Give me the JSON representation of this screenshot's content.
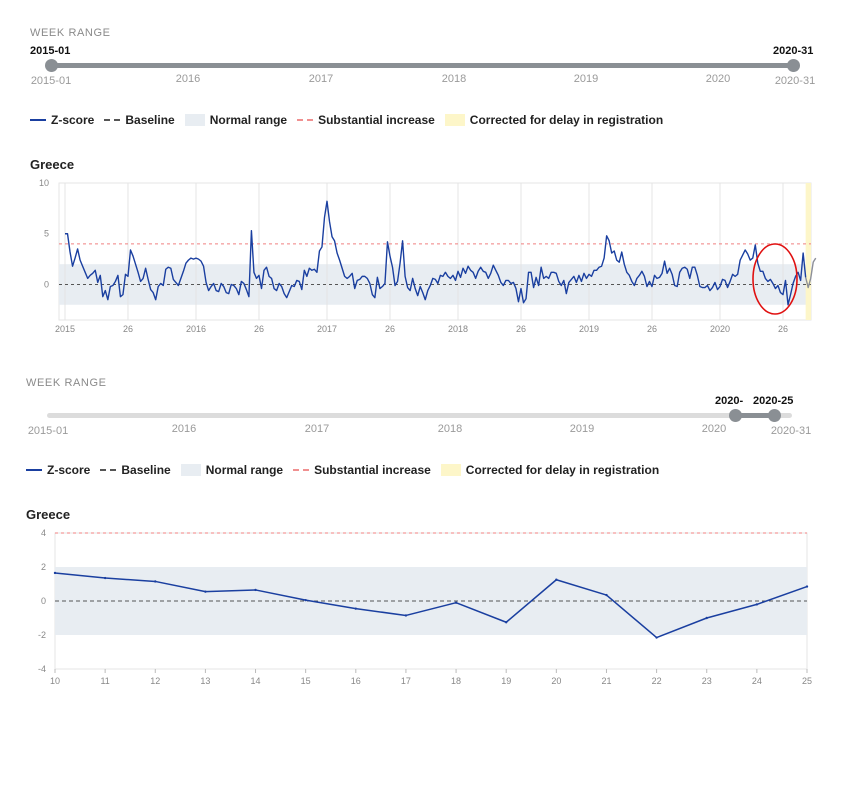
{
  "top": {
    "week_range_label": "WEEK RANGE",
    "slider_start_value": "2015-01",
    "slider_end_value": "2020-31",
    "scale_start": "2015-01",
    "scale_end": "2020-31",
    "years": [
      "2016",
      "2017",
      "2018",
      "2019",
      "2020"
    ],
    "legend": {
      "zscore": "Z-score",
      "baseline": "Baseline",
      "normal": "Normal range",
      "substantial": "Substantial increase",
      "corrected": "Corrected for delay in registration"
    },
    "chart_title": "Greece"
  },
  "bottom": {
    "week_range_label": "WEEK RANGE",
    "slider_start_value": "2020-",
    "slider_end_value": "2020-25",
    "scale_start": "2015-01",
    "scale_end": "2020-31",
    "years": [
      "2016",
      "2017",
      "2018",
      "2019",
      "2020"
    ],
    "legend": {
      "zscore": "Z-score",
      "baseline": "Baseline",
      "normal": "Normal range",
      "substantial": "Substantial increase",
      "corrected": "Corrected for delay in registration"
    },
    "chart_title": "Greece"
  },
  "colors": {
    "zscore": "#1a3fa0",
    "baseline": "#555555",
    "normal_band": "#e8edf2",
    "substantial": "#f08080",
    "corrected": "#fdf6c9",
    "slider": "#8a8f94",
    "annotation_circle": "#e01010"
  },
  "chart_data": [
    {
      "type": "line",
      "title": "Greece",
      "x_tick_labels": [
        "2015",
        "26",
        "2016",
        "26",
        "2017",
        "26",
        "2018",
        "26",
        "2019",
        "26",
        "2020",
        "26"
      ],
      "ylim": [
        -3.5,
        10
      ],
      "y_ticks": [
        0,
        5,
        10
      ],
      "y_tick_labels": [
        "0",
        "5",
        "10"
      ],
      "baseline": 0,
      "normal_range": [
        -2,
        2
      ],
      "substantial_increase": 4,
      "corrected_weeks": [
        "2020-27",
        "2020-31"
      ],
      "series": [
        {
          "values": [
            5,
            5,
            3.2,
            1.8,
            2.6,
            3.5,
            2.4,
            1.8,
            1.2,
            0.6,
            0.9,
            1.1,
            1.4,
            0.2,
            0.9,
            -1.2,
            -0.6,
            -1.5,
            -0.2,
            -0.1,
            0.3,
            0.9,
            -1.2,
            -1.0,
            1.0,
            0.8,
            3.4,
            2.8,
            2.0,
            1.2,
            0.3,
            0.6,
            1.6,
            0.5,
            -0.5,
            -0.8,
            -1.5,
            -0.2,
            0.1,
            -0.1,
            1.5,
            1.7,
            1.6,
            0.5,
            0.2,
            -0.1,
            0.6,
            1.3,
            2.1,
            2.4,
            2.6,
            2.5,
            2.6,
            2.5,
            2.3,
            1.8,
            0.2,
            -0.6,
            -0.2,
            0.1,
            -0.6,
            -0.7,
            0.1,
            -0.2,
            -0.8,
            -0.9,
            0,
            -0.1,
            -0.4,
            -1.0,
            0.3,
            0.1,
            -0.5,
            -1.2,
            5.3,
            1.2,
            0.6,
            0.9,
            -0.4,
            1.4,
            1.7,
            0.8,
            0.6,
            -0.4,
            -0.6,
            0.1,
            -0.2,
            -0.9,
            -1.3,
            -0.7,
            -0.1,
            -0.2,
            0.4,
            0.3,
            -0.5,
            1.4,
            0.8,
            1.6,
            1.4,
            1.5,
            1.2,
            3.3,
            3.7,
            6.6,
            8.2,
            6.2,
            4.7,
            4.3,
            3.1,
            2.4,
            1.6,
            0.8,
            0.6,
            0.8,
            1.1,
            -0.4,
            0.4,
            0.5,
            0.8,
            0.8,
            0.6,
            0.1,
            -1.0,
            -1.3,
            0.7,
            -0.4,
            -0.2,
            0.1,
            4.2,
            2.8,
            1.7,
            -0.1,
            0.3,
            2.1,
            4.3,
            0.8,
            -0.3,
            -0.6,
            0.6,
            -0.4,
            -1.1,
            -0.2,
            -0.8,
            -1.5,
            -0.6,
            -0.1,
            0.6,
            0.5,
            0.1,
            0.9,
            0.8,
            1.2,
            0.8,
            0.6,
            0.9,
            0.4,
            1.3,
            0.7,
            1.6,
            1.1,
            1.8,
            1.4,
            1.2,
            0.6,
            1.3,
            1.7,
            1.3,
            1.2,
            0.6,
            1.1,
            1.9,
            1.4,
            0.9,
            0.2,
            -0.1,
            0.4,
            0.4,
            0.1,
            0.2,
            -0.4,
            -1.7,
            -0.4,
            -1.8,
            -1.4,
            1.2,
            1.2,
            -0.3,
            0.7,
            -0.1,
            1.7,
            0.6,
            0.8,
            0.6,
            1.2,
            1.2,
            1.1,
            0.3,
            -0.1,
            0.4,
            -0.9,
            0.2,
            0.5,
            0.8,
            0.2,
            0.9,
            0.3,
            1.1,
            0.6,
            1.0,
            0.8,
            1.4,
            1.4,
            1.7,
            1.8,
            2.6,
            4.8,
            4.3,
            3.1,
            3.3,
            2.4,
            2.2,
            3.2,
            2.0,
            1.2,
            0.9,
            0.3,
            -0.1,
            0.6,
            0.9,
            1.3,
            0.8,
            -0.2,
            0.3,
            -0.2,
            0.9,
            0.6,
            0.7,
            1.1,
            2.3,
            1.1,
            1.6,
            1.0,
            -0.1,
            -0.2,
            1.2,
            1.6,
            1.7,
            1.5,
            0.6,
            1.7,
            1.7,
            0.9,
            -0.2,
            -0.3,
            -0.3,
            -0.1,
            -0.6,
            -0.3,
            0.2,
            -0.5,
            -0.2,
            0.5,
            0.4,
            -0.3,
            0.3,
            1.0,
            0.8,
            1.0,
            2.4,
            2.9,
            3.4,
            3.0,
            2.4,
            2.6,
            3.9,
            2.1,
            1.3,
            1.3,
            0.6,
            0.3,
            0.5,
            0.1,
            -0.4,
            -0.1,
            -0.8,
            -1.0,
            0.4,
            -2.0,
            -1.0,
            0.1,
            0.8,
            1.2,
            0.4,
            3.1,
            0.7,
            -0.3,
            0.6,
            2.2,
            2.6
          ]
        }
      ]
    },
    {
      "type": "line",
      "title": "Greece",
      "x": [
        10,
        11,
        12,
        13,
        14,
        15,
        16,
        17,
        18,
        19,
        20,
        21,
        22,
        23,
        24,
        25
      ],
      "ylim": [
        -4,
        4
      ],
      "y_ticks": [
        -4,
        -2,
        0,
        2,
        4
      ],
      "baseline": 0,
      "normal_range": [
        -2,
        2
      ],
      "substantial_increase": 4,
      "series": [
        {
          "values": [
            1.65,
            1.35,
            1.15,
            0.55,
            0.65,
            0.05,
            -0.45,
            -0.85,
            -0.1,
            -1.25,
            1.25,
            0.35,
            -2.15,
            -1.0,
            -0.2,
            0.85
          ]
        }
      ]
    }
  ]
}
